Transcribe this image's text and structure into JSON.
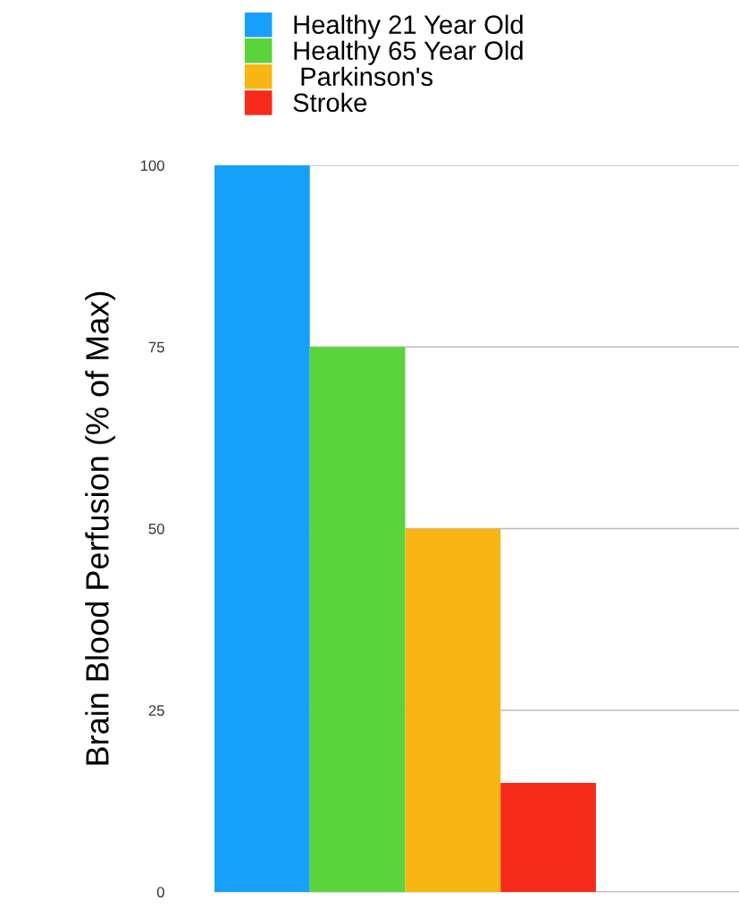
{
  "chart_data": {
    "type": "bar",
    "ylabel": "Brain Blood Perfusion (% of Max)",
    "categories": [
      null
    ],
    "series": [
      {
        "name": "Healthy 21 Year Old",
        "color": "#17a0f9",
        "values": [
          100
        ]
      },
      {
        "name": "Healthy 65 Year Old",
        "color": "#5ad43a",
        "values": [
          75
        ]
      },
      {
        "name": " Parkinson's",
        "color": "#f7b614",
        "values": [
          50
        ]
      },
      {
        "name": "Stroke",
        "color": "#f72b1a",
        "values": [
          15
        ]
      }
    ],
    "ylim": [
      0,
      100
    ],
    "yticks": [
      0,
      25,
      50,
      75,
      100
    ],
    "grid": "y",
    "legend": "top left"
  }
}
